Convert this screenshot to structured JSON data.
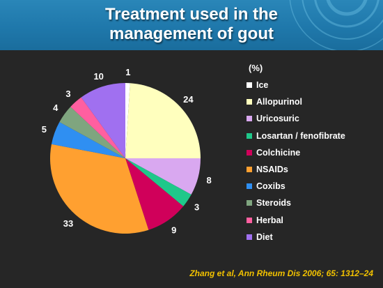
{
  "slide": {
    "title_line1": "Treatment used in the",
    "title_line2": "management of gout",
    "citation": "Zhang et al, Ann Rheum Dis 2006; 65: 1312–24",
    "header_color": "#1f78ab",
    "background_color": "#262626",
    "citation_color": "#f2c200"
  },
  "chart_data": {
    "type": "pie",
    "unit_label": "(%)",
    "legend_position": "right",
    "categories": [
      "Ice",
      "Allopurinol",
      "Uricosuric",
      "Losartan / fenofibrate",
      "Colchicine",
      "NSAIDs",
      "Coxibs",
      "Steroids",
      "Herbal",
      "Diet"
    ],
    "values": [
      1,
      24,
      8,
      3,
      9,
      33,
      5,
      4,
      3,
      10
    ],
    "colors": [
      "#ffffff",
      "#ffffbe",
      "#d9a8f0",
      "#1fc88a",
      "#d0005a",
      "#ffa030",
      "#2f8ff2",
      "#7fa57f",
      "#ff5fa0",
      "#a070f0"
    ]
  }
}
